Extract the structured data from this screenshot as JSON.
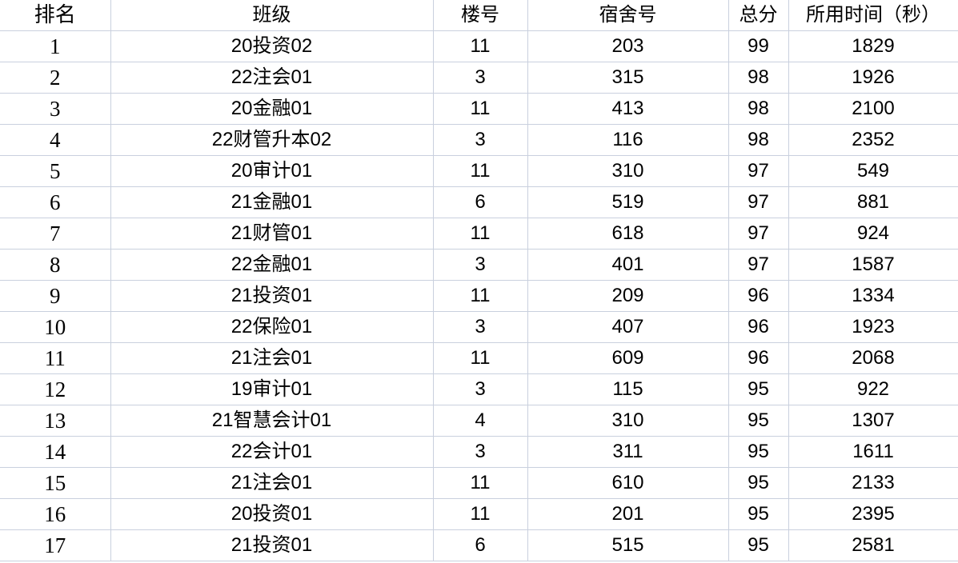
{
  "headers": [
    "排名",
    "班级",
    "楼号",
    "宿舍号",
    "总分",
    "所用时间（秒）"
  ],
  "rows": [
    [
      "1",
      "20投资02",
      "11",
      "203",
      "99",
      "1829"
    ],
    [
      "2",
      "22注会01",
      "3",
      "315",
      "98",
      "1926"
    ],
    [
      "3",
      "20金融01",
      "11",
      "413",
      "98",
      "2100"
    ],
    [
      "4",
      "22财管升本02",
      "3",
      "116",
      "98",
      "2352"
    ],
    [
      "5",
      "20审计01",
      "11",
      "310",
      "97",
      "549"
    ],
    [
      "6",
      "21金融01",
      "6",
      "519",
      "97",
      "881"
    ],
    [
      "7",
      "21财管01",
      "11",
      "618",
      "97",
      "924"
    ],
    [
      "8",
      "22金融01",
      "3",
      "401",
      "97",
      "1587"
    ],
    [
      "9",
      "21投资01",
      "11",
      "209",
      "96",
      "1334"
    ],
    [
      "10",
      "22保险01",
      "3",
      "407",
      "96",
      "1923"
    ],
    [
      "11",
      "21注会01",
      "11",
      "609",
      "96",
      "2068"
    ],
    [
      "12",
      "19审计01",
      "3",
      "115",
      "95",
      "922"
    ],
    [
      "13",
      "21智慧会计01",
      "4",
      "310",
      "95",
      "1307"
    ],
    [
      "14",
      "22会计01",
      "3",
      "311",
      "95",
      "1611"
    ],
    [
      "15",
      "21注会01",
      "11",
      "610",
      "95",
      "2133"
    ],
    [
      "16",
      "20投资01",
      "11",
      "201",
      "95",
      "2395"
    ],
    [
      "17",
      "21投资01",
      "6",
      "515",
      "95",
      "2581"
    ]
  ]
}
